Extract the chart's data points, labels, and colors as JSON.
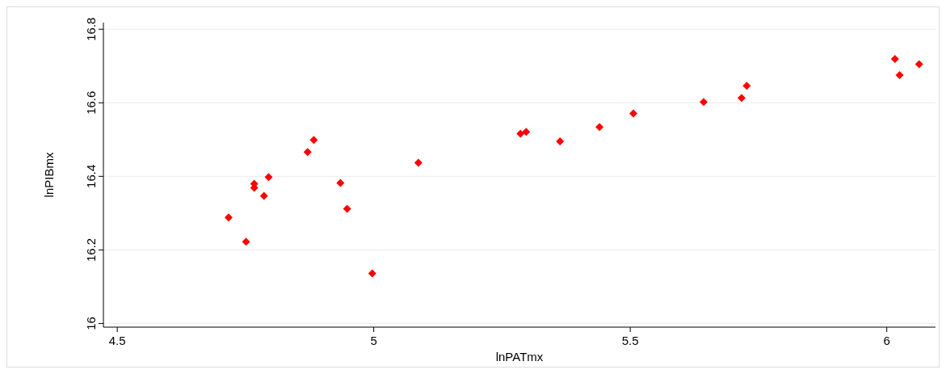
{
  "chart_data": {
    "type": "scatter",
    "xlabel": "lnPATmx",
    "ylabel": "lnPIBmx",
    "x": [
      4.717,
      4.751,
      4.767,
      4.767,
      4.786,
      4.795,
      4.871,
      4.883,
      4.935,
      4.948,
      4.997,
      5.087,
      5.286,
      5.297,
      5.363,
      5.44,
      5.506,
      5.643,
      5.717,
      5.727,
      6.016,
      6.025,
      6.063
    ],
    "series": [
      {
        "color": "#ff0000",
        "values": [
          16.288,
          16.222,
          16.38,
          16.369,
          16.347,
          16.398,
          16.466,
          16.499,
          16.382,
          16.312,
          16.136,
          16.437,
          16.516,
          16.521,
          16.495,
          16.534,
          16.571,
          16.602,
          16.613,
          16.646,
          16.719,
          16.675,
          16.705
        ]
      }
    ],
    "xlim": [
      4.473,
      6.095
    ],
    "ylim": [
      15.99,
      16.818
    ],
    "xticks": [
      4.5,
      5,
      5.5,
      6
    ],
    "yticks": [
      16,
      16.2,
      16.4,
      16.6,
      16.8
    ],
    "grid": "y",
    "marker": "diamond"
  }
}
